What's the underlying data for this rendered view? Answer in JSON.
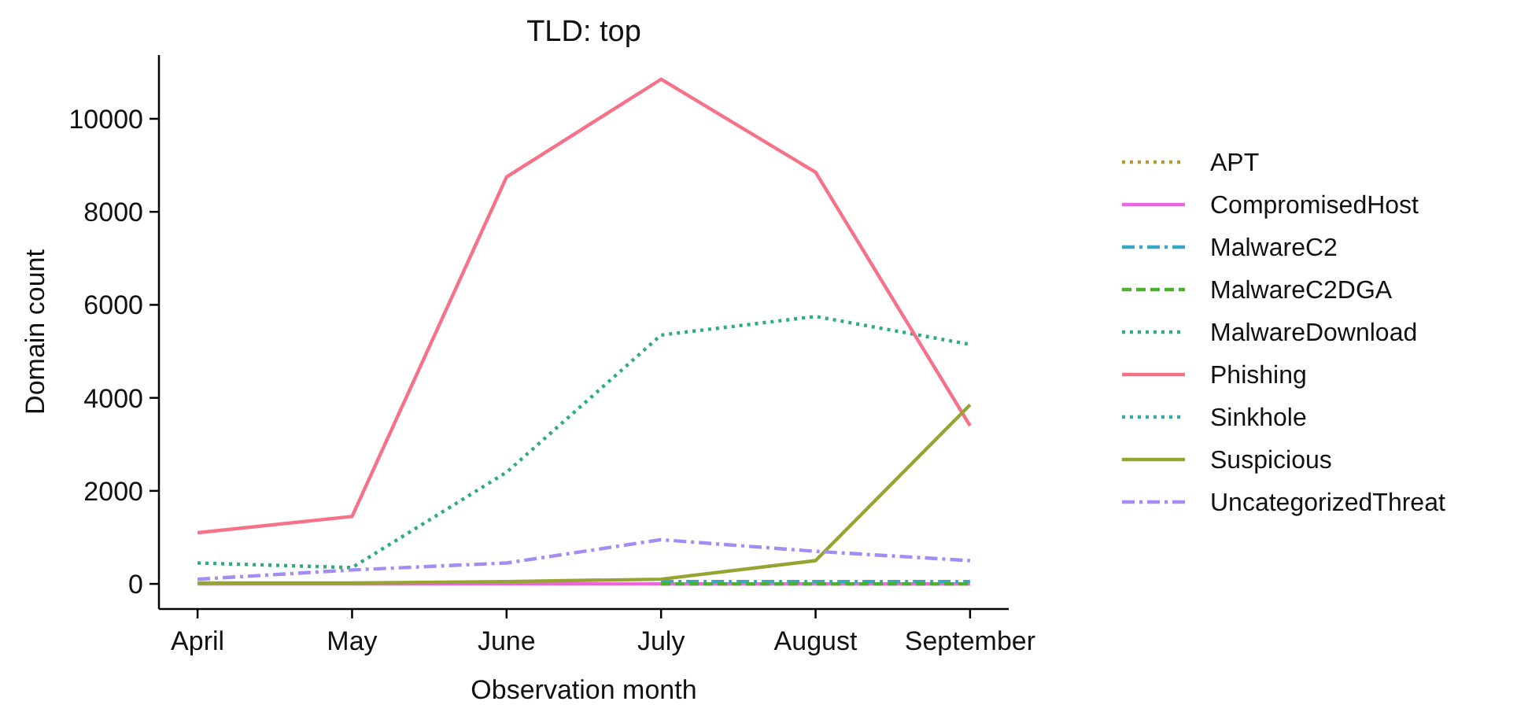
{
  "chart_data": {
    "type": "line",
    "title": "TLD: top",
    "xlabel": "Observation month",
    "ylabel": "Domain count",
    "categories": [
      "April",
      "May",
      "June",
      "July",
      "August",
      "September"
    ],
    "ylim": [
      -540,
      11370
    ],
    "yticks": [
      0,
      2000,
      4000,
      6000,
      8000,
      10000
    ],
    "grid": false,
    "legend": "right",
    "series": [
      {
        "name": "APT",
        "color": "#b59b34",
        "line_style": "dotted",
        "values": [
          null,
          null,
          null,
          null,
          null,
          null
        ]
      },
      {
        "name": "CompromisedHost",
        "color": "#ee66dd",
        "line_style": "solid",
        "values": [
          0,
          0,
          0,
          0,
          0,
          0
        ]
      },
      {
        "name": "MalwareC2",
        "color": "#3aa8c4",
        "line_style": "dashdot",
        "values": [
          null,
          null,
          null,
          50,
          50,
          50
        ]
      },
      {
        "name": "MalwareC2DGA",
        "color": "#4daf2f",
        "line_style": "dashed",
        "values": [
          null,
          null,
          null,
          0,
          0,
          0
        ]
      },
      {
        "name": "MalwareDownload",
        "color": "#2fad78",
        "line_style": "dotted",
        "values": [
          450,
          350,
          2400,
          5350,
          5750,
          5150
        ]
      },
      {
        "name": "Phishing",
        "color": "#f77189",
        "line_style": "solid",
        "values": [
          1100,
          1450,
          8750,
          10850,
          8850,
          3400
        ]
      },
      {
        "name": "Sinkhole",
        "color": "#36ada4",
        "line_style": "dotted",
        "values": [
          null,
          null,
          null,
          null,
          null,
          null
        ]
      },
      {
        "name": "Suspicious",
        "color": "#97a431",
        "line_style": "solid",
        "values": [
          20,
          20,
          50,
          100,
          500,
          3850
        ]
      },
      {
        "name": "UncategorizedThreat",
        "color": "#a48cf4",
        "line_style": "dashdot",
        "values": [
          100,
          300,
          450,
          950,
          700,
          500
        ]
      }
    ]
  }
}
